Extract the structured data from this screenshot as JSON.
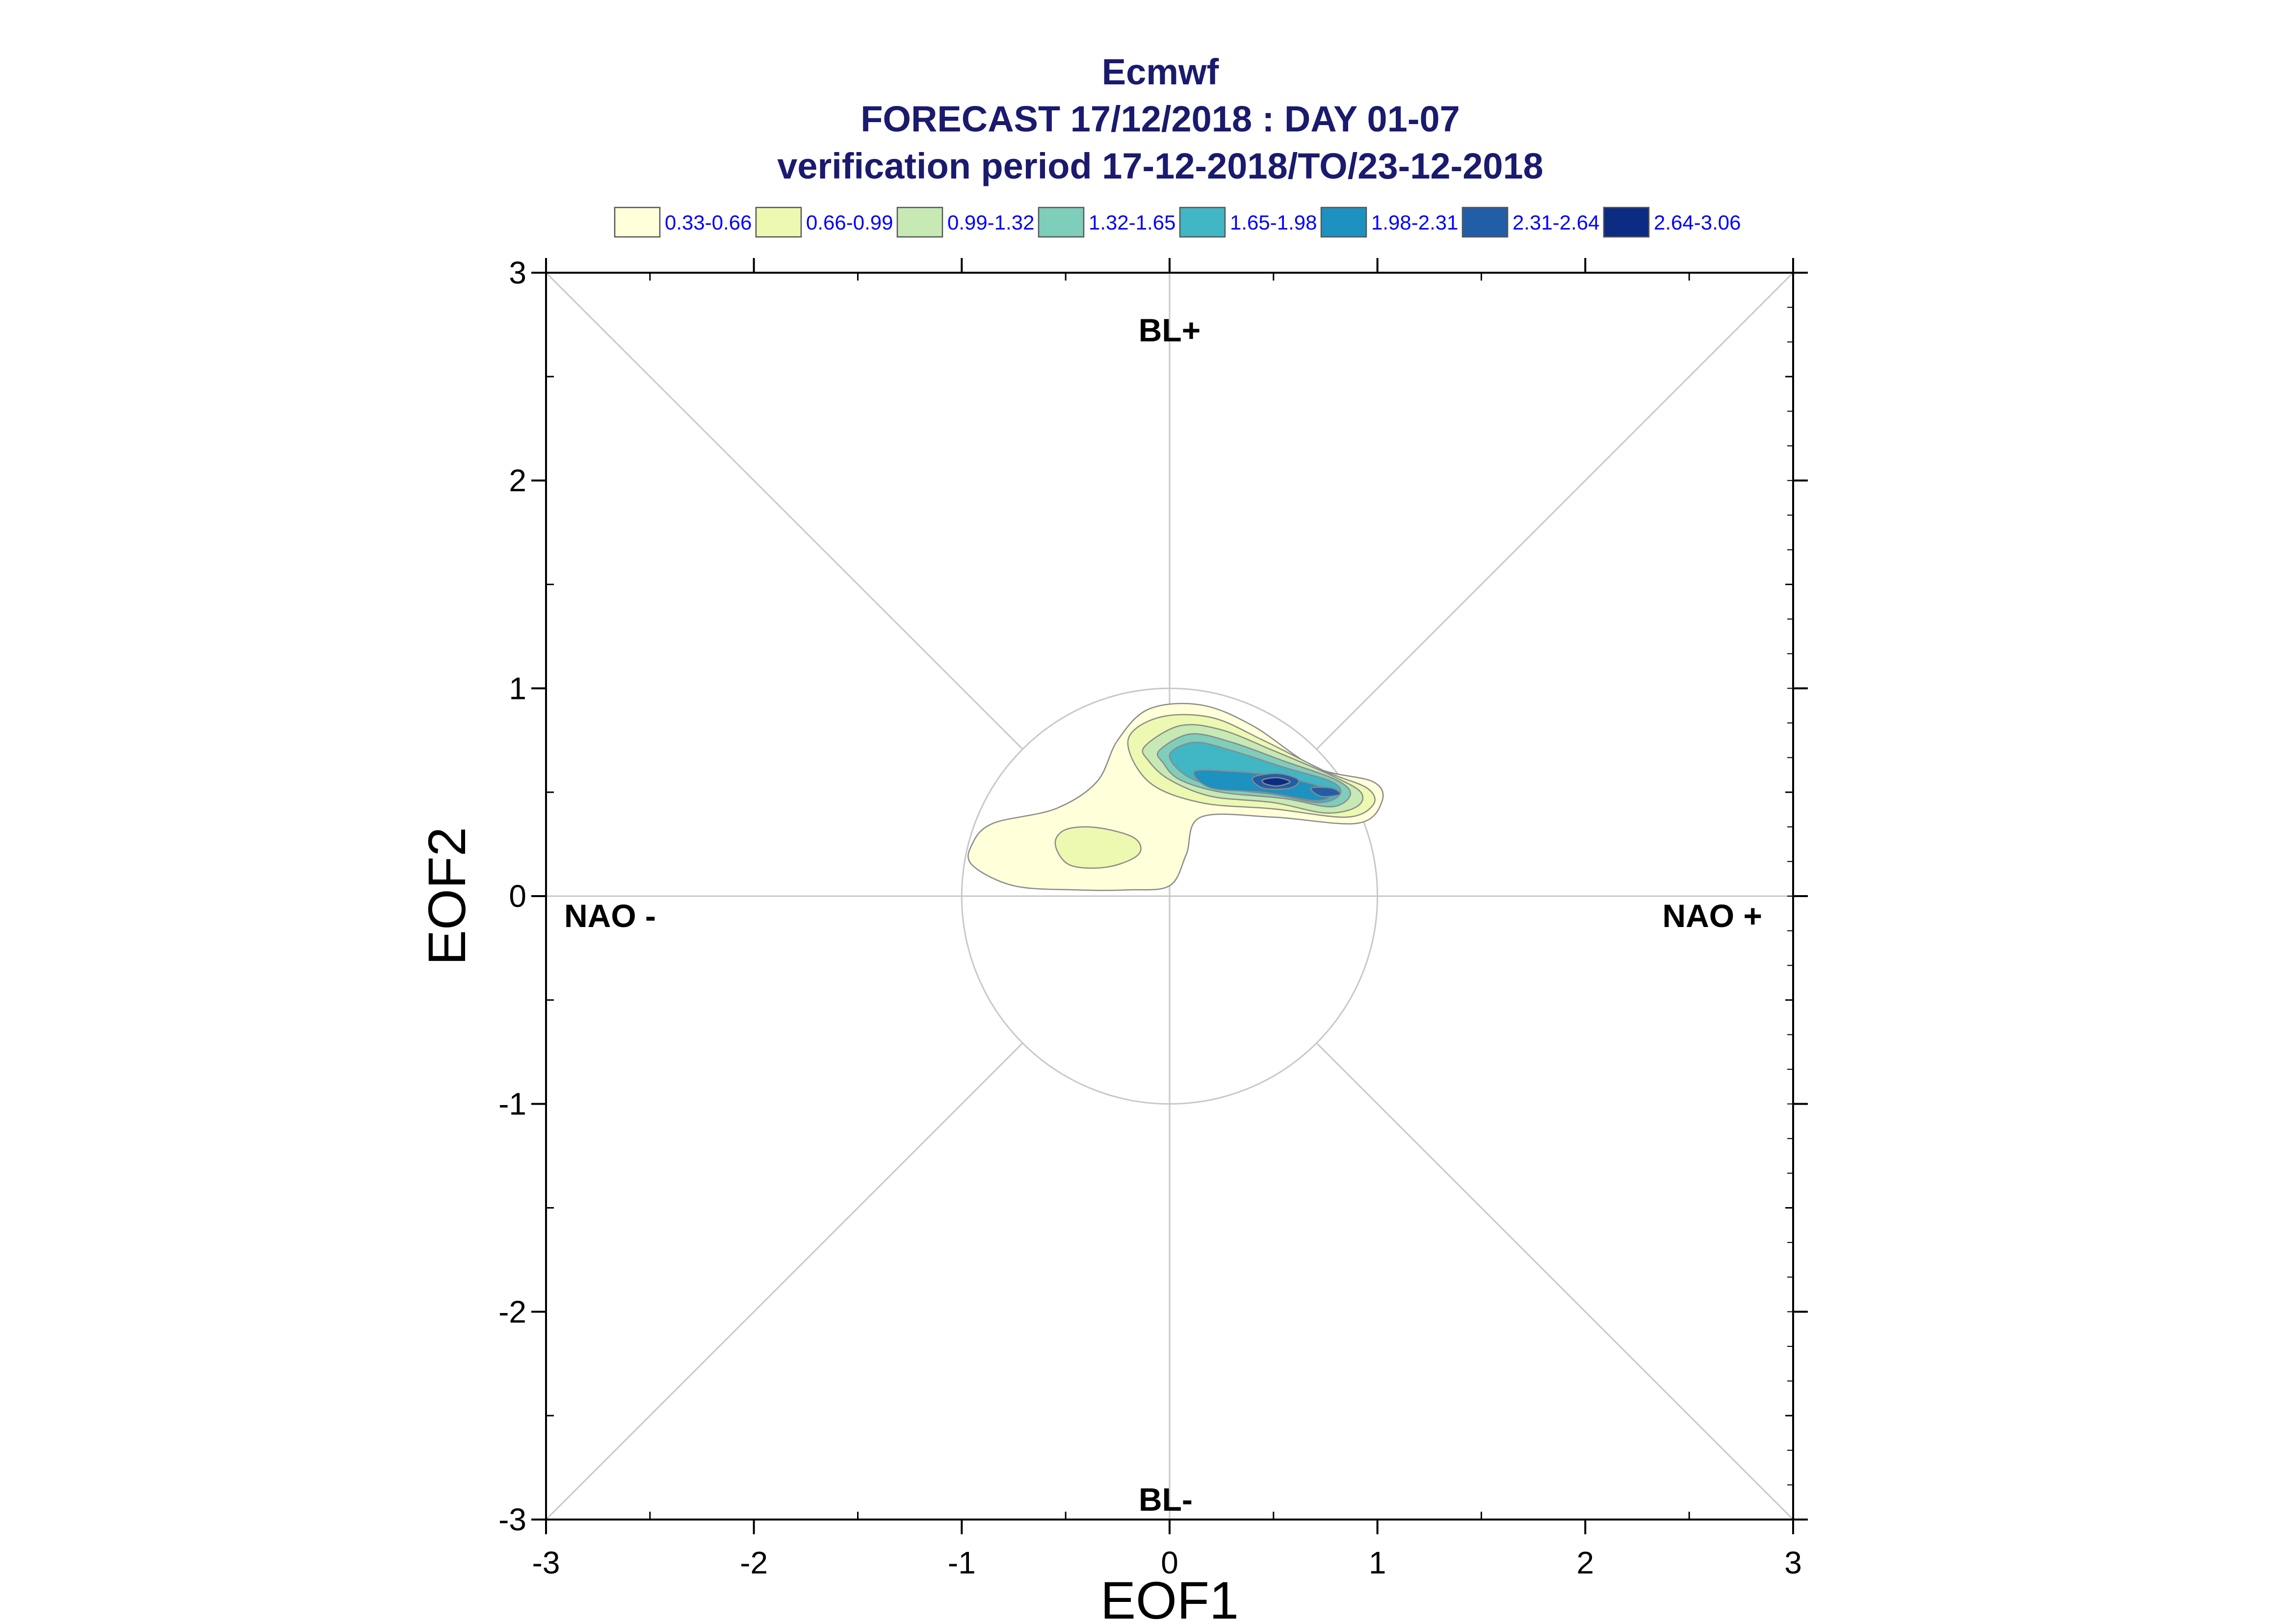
{
  "titles": {
    "line1": "Ecmwf",
    "line2": "FORECAST 17/12/2018 : DAY 01-07",
    "line3": "verification period 17-12-2018/TO/23-12-2018"
  },
  "chart_data": {
    "type": "contour",
    "xlabel": "EOF1",
    "ylabel": "EOF2",
    "xlim": [
      -3,
      3
    ],
    "ylim": [
      -3,
      3
    ],
    "xticks": [
      "-3",
      "-2",
      "-1",
      "0",
      "1",
      "2",
      "3"
    ],
    "yticks": [
      "-3",
      "-2",
      "-1",
      "0",
      "1",
      "2",
      "3"
    ],
    "grid": "axes through origin, diagonals, unit circle",
    "regime_labels": {
      "top": "BL+",
      "bottom": "BL-",
      "left": "NAO -",
      "right": "NAO +"
    },
    "legend": [
      {
        "label": "0.33-0.66",
        "color": "#ffffd9"
      },
      {
        "label": "0.66-0.99",
        "color": "#edf8b1"
      },
      {
        "label": "0.99-1.32",
        "color": "#c7e9b4"
      },
      {
        "label": "1.32-1.65",
        "color": "#7fcdbb"
      },
      {
        "label": "1.65-1.98",
        "color": "#41b6c4"
      },
      {
        "label": "1.98-2.31",
        "color": "#1d91c0"
      },
      {
        "label": "2.31-2.64",
        "color": "#225ea8"
      },
      {
        "label": "2.64-3.06",
        "color": "#0c2c84"
      }
    ],
    "density_regions": [
      {
        "level": 0,
        "points": [
          [
            -0.95,
            0.25
          ],
          [
            -0.85,
            0.35
          ],
          [
            -0.55,
            0.42
          ],
          [
            -0.35,
            0.55
          ],
          [
            -0.25,
            0.75
          ],
          [
            -0.1,
            0.9
          ],
          [
            0.15,
            0.92
          ],
          [
            0.4,
            0.82
          ],
          [
            0.7,
            0.62
          ],
          [
            0.98,
            0.55
          ],
          [
            1.02,
            0.45
          ],
          [
            0.9,
            0.35
          ],
          [
            0.5,
            0.38
          ],
          [
            0.15,
            0.38
          ],
          [
            0.08,
            0.2
          ],
          [
            0.0,
            0.05
          ],
          [
            -0.2,
            0.03
          ],
          [
            -0.45,
            0.03
          ],
          [
            -0.75,
            0.05
          ],
          [
            -0.95,
            0.15
          ]
        ]
      },
      {
        "level": 1,
        "points": [
          [
            -0.2,
            0.75
          ],
          [
            -0.05,
            0.86
          ],
          [
            0.2,
            0.86
          ],
          [
            0.45,
            0.75
          ],
          [
            0.75,
            0.6
          ],
          [
            0.95,
            0.52
          ],
          [
            0.98,
            0.44
          ],
          [
            0.85,
            0.38
          ],
          [
            0.5,
            0.42
          ],
          [
            0.15,
            0.45
          ],
          [
            -0.1,
            0.55
          ]
        ]
      },
      {
        "level": 1,
        "points": [
          [
            -0.55,
            0.25
          ],
          [
            -0.5,
            0.32
          ],
          [
            -0.35,
            0.33
          ],
          [
            -0.17,
            0.28
          ],
          [
            -0.15,
            0.2
          ],
          [
            -0.3,
            0.14
          ],
          [
            -0.48,
            0.15
          ]
        ]
      },
      {
        "level": 2,
        "points": [
          [
            -0.12,
            0.72
          ],
          [
            0.05,
            0.82
          ],
          [
            0.25,
            0.8
          ],
          [
            0.5,
            0.7
          ],
          [
            0.78,
            0.58
          ],
          [
            0.92,
            0.5
          ],
          [
            0.9,
            0.43
          ],
          [
            0.75,
            0.4
          ],
          [
            0.5,
            0.45
          ],
          [
            0.2,
            0.48
          ],
          [
            0.0,
            0.56
          ],
          [
            -0.1,
            0.65
          ]
        ]
      },
      {
        "level": 3,
        "points": [
          [
            -0.05,
            0.7
          ],
          [
            0.1,
            0.78
          ],
          [
            0.3,
            0.74
          ],
          [
            0.55,
            0.65
          ],
          [
            0.8,
            0.56
          ],
          [
            0.87,
            0.49
          ],
          [
            0.78,
            0.43
          ],
          [
            0.55,
            0.47
          ],
          [
            0.25,
            0.5
          ],
          [
            0.05,
            0.56
          ],
          [
            -0.03,
            0.64
          ]
        ]
      },
      {
        "level": 4,
        "points": [
          [
            0.0,
            0.68
          ],
          [
            0.12,
            0.74
          ],
          [
            0.3,
            0.7
          ],
          [
            0.55,
            0.62
          ],
          [
            0.78,
            0.55
          ],
          [
            0.82,
            0.49
          ],
          [
            0.72,
            0.45
          ],
          [
            0.5,
            0.49
          ],
          [
            0.25,
            0.52
          ],
          [
            0.08,
            0.58
          ]
        ]
      },
      {
        "level": 5,
        "points": [
          [
            0.12,
            0.6
          ],
          [
            0.3,
            0.6
          ],
          [
            0.5,
            0.58
          ],
          [
            0.72,
            0.53
          ],
          [
            0.78,
            0.49
          ],
          [
            0.7,
            0.46
          ],
          [
            0.45,
            0.5
          ],
          [
            0.2,
            0.52
          ]
        ]
      },
      {
        "level": 6,
        "points": [
          [
            0.4,
            0.57
          ],
          [
            0.52,
            0.59
          ],
          [
            0.62,
            0.56
          ],
          [
            0.58,
            0.52
          ],
          [
            0.45,
            0.52
          ]
        ]
      },
      {
        "level": 6,
        "points": [
          [
            0.68,
            0.52
          ],
          [
            0.78,
            0.52
          ],
          [
            0.82,
            0.49
          ],
          [
            0.73,
            0.48
          ]
        ]
      },
      {
        "level": 7,
        "points": [
          [
            0.45,
            0.56
          ],
          [
            0.52,
            0.57
          ],
          [
            0.58,
            0.55
          ],
          [
            0.52,
            0.53
          ],
          [
            0.46,
            0.54
          ]
        ]
      }
    ]
  }
}
